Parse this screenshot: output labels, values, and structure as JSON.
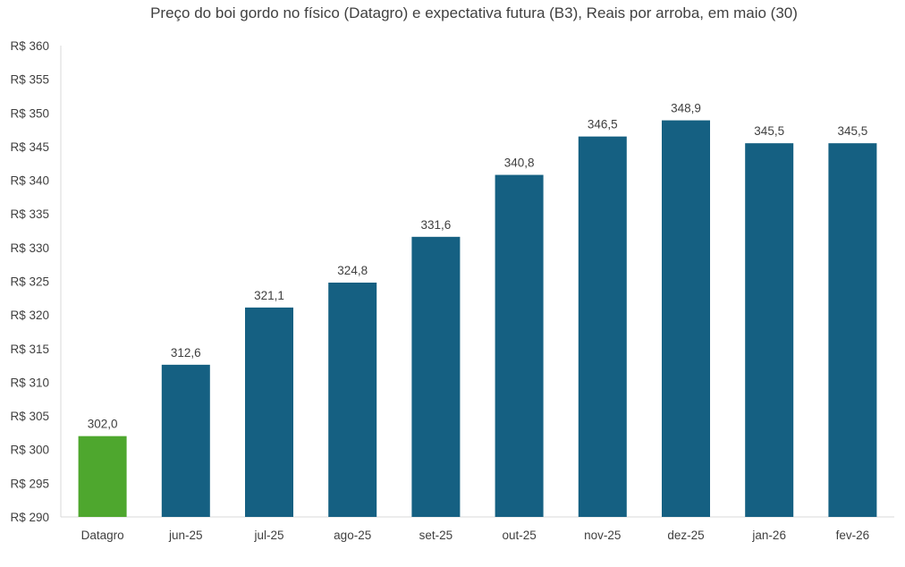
{
  "chart_data": {
    "type": "bar",
    "title": "Preço do boi gordo no físico (Datagro)  e expectativa futura (B3), Reais por arroba, em maio (30)",
    "xlabel": "",
    "ylabel": "",
    "y_prefix": "R$ ",
    "ylim": [
      290,
      360
    ],
    "y_tick_step": 5,
    "grid": false,
    "legend": "none",
    "categories": [
      "Datagro",
      "jun-25",
      "jul-25",
      "ago-25",
      "set-25",
      "out-25",
      "nov-25",
      "dez-25",
      "jan-26",
      "fev-26"
    ],
    "values": [
      302.0,
      312.6,
      321.1,
      324.8,
      331.6,
      340.8,
      346.5,
      348.9,
      345.5,
      345.5
    ],
    "data_labels": [
      "302,0",
      "312,6",
      "321,1",
      "324,8",
      "331,6",
      "340,8",
      "346,5",
      "348,9",
      "345,5",
      "345,5"
    ],
    "y_tick_labels": [
      "R$ 290",
      "R$ 295",
      "R$ 300",
      "R$ 305",
      "R$ 310",
      "R$ 315",
      "R$ 320",
      "R$ 325",
      "R$ 330",
      "R$ 335",
      "R$ 340",
      "R$ 345",
      "R$ 350",
      "R$ 355",
      "R$ 360"
    ],
    "bar_colors": [
      "#4EA72E",
      "#156082",
      "#156082",
      "#156082",
      "#156082",
      "#156082",
      "#156082",
      "#156082",
      "#156082",
      "#156082"
    ],
    "axis_color": "#d9d9d9"
  }
}
